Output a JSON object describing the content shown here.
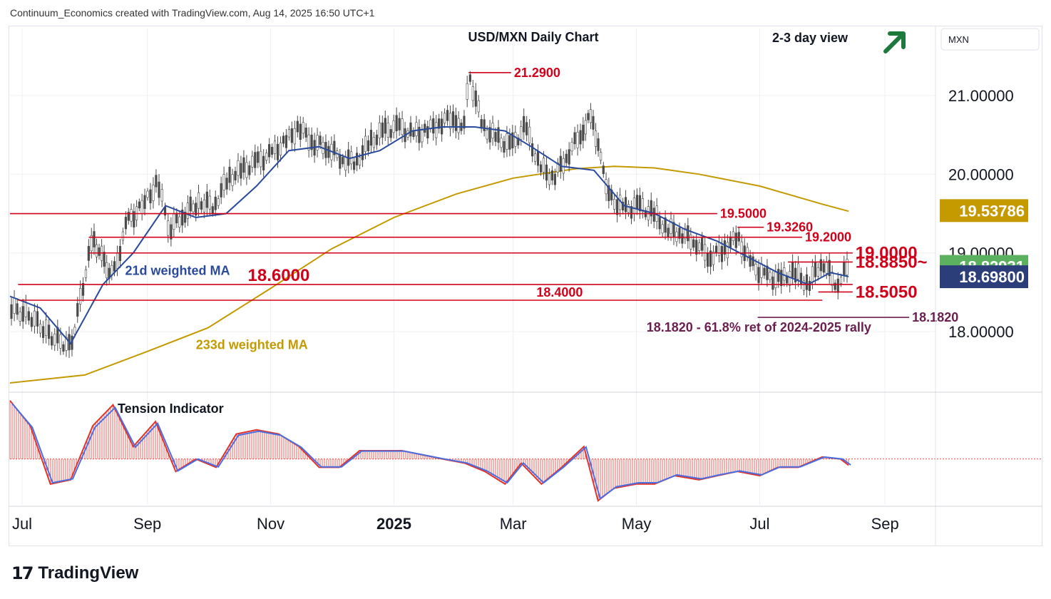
{
  "header": {
    "attribution": "Continuum_Economics created with TradingView.com, Aug 14, 2025 16:50 UTC+1"
  },
  "footer": {
    "logo_mark": "17",
    "logo_text": "TradingView"
  },
  "colors": {
    "up_candle": "#4a4a4a",
    "down_candle": "#4a4a4a",
    "level_line": "#d0021b",
    "ma21": "#2a4a9b",
    "ma233": "#c49a00",
    "tension_line_red": "#e0352b",
    "tension_line_blue": "#4a6fe3",
    "arrow_green": "#1e7a3c",
    "grid": "#eef0f4",
    "label_purple": "#6b1f4f"
  },
  "chart_data": {
    "type": "line",
    "title": "USD/MXN Daily Chart",
    "subtitle": "2-3 day view",
    "outlook_icon": "arrow-up-right-icon",
    "y_axis": {
      "unit": "MXN",
      "ticks": [
        "21.00000",
        "20.00000",
        "19.00000",
        "18.00000"
      ],
      "tick_values": [
        21.0,
        20.0,
        19.0,
        18.0
      ],
      "ylim": [
        17.25,
        21.85
      ]
    },
    "x_axis": {
      "ticks": [
        "Jul",
        "Sep",
        "Nov",
        "2025",
        "Mar",
        "May",
        "Jul",
        "Sep"
      ],
      "start_date": "2024-06-25",
      "end_date": "2025-09-26"
    },
    "price_badges": [
      {
        "value": "19.53786",
        "color": "#c49a00",
        "text_color": "#ffffff"
      },
      {
        "value": "18.82931",
        "color": "#5bb15f",
        "text_color": "#ffffff"
      },
      {
        "value": "18.69800",
        "color": "#2c3e7a",
        "text_color": "#ffffff"
      }
    ],
    "levels": [
      {
        "value": 21.29,
        "label": "21.2900",
        "from_date": "2025-02-07",
        "to_date": "2025-02-28"
      },
      {
        "value": 19.5,
        "label": "19.5000",
        "from_date": "2024-06-25",
        "to_date": "2025-06-10"
      },
      {
        "value": 19.326,
        "label": "19.3260",
        "from_date": "2025-06-20",
        "to_date": "2025-07-03"
      },
      {
        "value": 19.2,
        "label": "19.2000",
        "from_date": "2024-08-03",
        "to_date": "2025-07-22"
      },
      {
        "value": 19.0,
        "label": "19.0000",
        "from_date": "2024-08-03",
        "to_date": "2025-08-16",
        "size": "large"
      },
      {
        "value": 18.885,
        "label": "18.8850~",
        "from_date": "2025-07-15",
        "to_date": "2025-08-16",
        "size": "large"
      },
      {
        "value": 18.6,
        "label": "18.6000",
        "from_date": "2024-06-29",
        "to_date": "2025-08-16",
        "size": "large",
        "label_date": "2024-11-05"
      },
      {
        "value": 18.505,
        "label": "18.5050",
        "from_date": "2025-07-30",
        "to_date": "2025-08-16",
        "size": "large"
      },
      {
        "value": 18.4,
        "label": "18.4000",
        "from_date": "2024-06-29",
        "to_date": "2025-08-01",
        "label_date": "2025-03-24"
      },
      {
        "value": 18.182,
        "label": "18.1820",
        "from_date": "2025-06-30",
        "to_date": "2025-09-13",
        "color": "#6b1f4f"
      }
    ],
    "annotations": [
      {
        "text": "21d weighted MA",
        "date": "2024-08-21",
        "value": 18.72
      },
      {
        "text": "233d weighted MA",
        "date": "2024-09-25",
        "value": 17.78
      },
      {
        "text": "18.1820 - 61.8% ret of 2024-2025 rally",
        "date": "2025-05-06",
        "value": 18.0
      },
      {
        "text": "Tension Indicator",
        "panel": "lower"
      }
    ],
    "series": [
      {
        "name": "USD/MXN",
        "x": [
          "2024-06-25",
          "2024-07-05",
          "2024-07-15",
          "2024-07-25",
          "2024-08-05",
          "2024-08-10",
          "2024-08-15",
          "2024-08-22",
          "2024-08-30",
          "2024-09-06",
          "2024-09-12",
          "2024-09-19",
          "2024-09-27",
          "2024-10-04",
          "2024-10-11",
          "2024-10-18",
          "2024-10-25",
          "2024-11-01",
          "2024-11-08",
          "2024-11-15",
          "2024-11-22",
          "2024-11-29",
          "2024-12-06",
          "2024-12-13",
          "2024-12-20",
          "2024-12-27",
          "2025-01-03",
          "2025-01-10",
          "2025-01-17",
          "2025-01-24",
          "2025-01-31",
          "2025-02-04",
          "2025-02-07",
          "2025-02-14",
          "2025-02-21",
          "2025-02-28",
          "2025-03-07",
          "2025-03-14",
          "2025-03-21",
          "2025-03-28",
          "2025-04-04",
          "2025-04-09",
          "2025-04-14",
          "2025-04-18",
          "2025-04-25",
          "2025-05-02",
          "2025-05-09",
          "2025-05-16",
          "2025-05-23",
          "2025-05-30",
          "2025-06-06",
          "2025-06-13",
          "2025-06-20",
          "2025-06-27",
          "2025-07-04",
          "2025-07-11",
          "2025-07-18",
          "2025-07-25",
          "2025-08-01",
          "2025-08-08",
          "2025-08-14"
        ],
        "values": [
          18.3,
          18.2,
          17.95,
          17.8,
          19.2,
          18.9,
          18.7,
          19.4,
          19.6,
          19.9,
          19.3,
          19.5,
          19.65,
          19.6,
          19.95,
          20.05,
          20.15,
          20.25,
          20.4,
          20.6,
          20.4,
          20.35,
          20.2,
          20.15,
          20.4,
          20.55,
          20.6,
          20.5,
          20.55,
          20.65,
          20.75,
          20.5,
          21.29,
          20.6,
          20.45,
          20.35,
          20.6,
          20.1,
          19.95,
          20.25,
          20.55,
          20.75,
          20.1,
          19.7,
          19.55,
          19.6,
          19.5,
          19.3,
          19.25,
          19.15,
          18.95,
          19.05,
          19.2,
          18.85,
          18.7,
          18.65,
          18.75,
          18.6,
          18.9,
          18.6,
          18.83
        ]
      },
      {
        "name": "21d weighted MA",
        "x": [
          "2024-06-25",
          "2024-07-10",
          "2024-07-25",
          "2024-08-10",
          "2024-08-25",
          "2024-09-10",
          "2024-09-25",
          "2024-10-10",
          "2024-10-25",
          "2024-11-10",
          "2024-11-25",
          "2024-12-10",
          "2024-12-25",
          "2025-01-10",
          "2025-01-25",
          "2025-02-10",
          "2025-02-25",
          "2025-03-10",
          "2025-03-25",
          "2025-04-10",
          "2025-04-25",
          "2025-05-10",
          "2025-05-25",
          "2025-06-10",
          "2025-06-25",
          "2025-07-10",
          "2025-07-25",
          "2025-08-05",
          "2025-08-14"
        ],
        "values": [
          18.45,
          18.3,
          17.85,
          18.6,
          19.0,
          19.6,
          19.45,
          19.5,
          19.85,
          20.3,
          20.35,
          20.2,
          20.3,
          20.55,
          20.6,
          20.6,
          20.55,
          20.35,
          20.1,
          20.05,
          19.6,
          19.5,
          19.3,
          19.15,
          18.95,
          18.75,
          18.6,
          18.75,
          18.7
        ]
      },
      {
        "name": "233d weighted MA",
        "x": [
          "2024-06-25",
          "2024-08-01",
          "2024-09-01",
          "2024-10-01",
          "2024-11-01",
          "2024-12-01",
          "2025-01-01",
          "2025-02-01",
          "2025-03-01",
          "2025-04-01",
          "2025-04-20",
          "2025-05-10",
          "2025-06-01",
          "2025-07-01",
          "2025-08-01",
          "2025-08-14"
        ],
        "values": [
          17.35,
          17.45,
          17.75,
          18.05,
          18.55,
          19.05,
          19.45,
          19.75,
          19.95,
          20.07,
          20.1,
          20.08,
          20.0,
          19.85,
          19.62,
          19.53
        ]
      },
      {
        "name": "Tension Indicator",
        "x": [
          "2024-06-25",
          "2024-07-05",
          "2024-07-15",
          "2024-07-25",
          "2024-08-05",
          "2024-08-15",
          "2024-08-25",
          "2024-09-05",
          "2024-09-15",
          "2024-09-25",
          "2024-10-05",
          "2024-10-15",
          "2024-10-25",
          "2024-11-05",
          "2024-11-15",
          "2024-11-25",
          "2024-12-05",
          "2024-12-15",
          "2024-12-25",
          "2025-01-05",
          "2025-01-15",
          "2025-01-25",
          "2025-02-05",
          "2025-02-15",
          "2025-02-25",
          "2025-03-05",
          "2025-03-15",
          "2025-03-25",
          "2025-04-05",
          "2025-04-12",
          "2025-04-20",
          "2025-05-01",
          "2025-05-10",
          "2025-05-20",
          "2025-06-01",
          "2025-06-10",
          "2025-06-20",
          "2025-07-01",
          "2025-07-10",
          "2025-07-20",
          "2025-08-01",
          "2025-08-10",
          "2025-08-14"
        ],
        "values": [
          1.4,
          0.8,
          -0.6,
          -0.5,
          0.8,
          1.3,
          0.3,
          0.9,
          -0.3,
          0.0,
          -0.2,
          0.6,
          0.7,
          0.6,
          0.3,
          -0.2,
          -0.2,
          0.2,
          0.2,
          0.2,
          0.1,
          0.0,
          -0.1,
          -0.3,
          -0.6,
          -0.1,
          -0.6,
          -0.2,
          0.3,
          -1.0,
          -0.7,
          -0.6,
          -0.6,
          -0.4,
          -0.5,
          -0.4,
          -0.3,
          -0.4,
          -0.2,
          -0.2,
          0.05,
          0.0,
          -0.15
        ]
      }
    ],
    "tension_ylim": [
      -1.1,
      1.5
    ]
  }
}
